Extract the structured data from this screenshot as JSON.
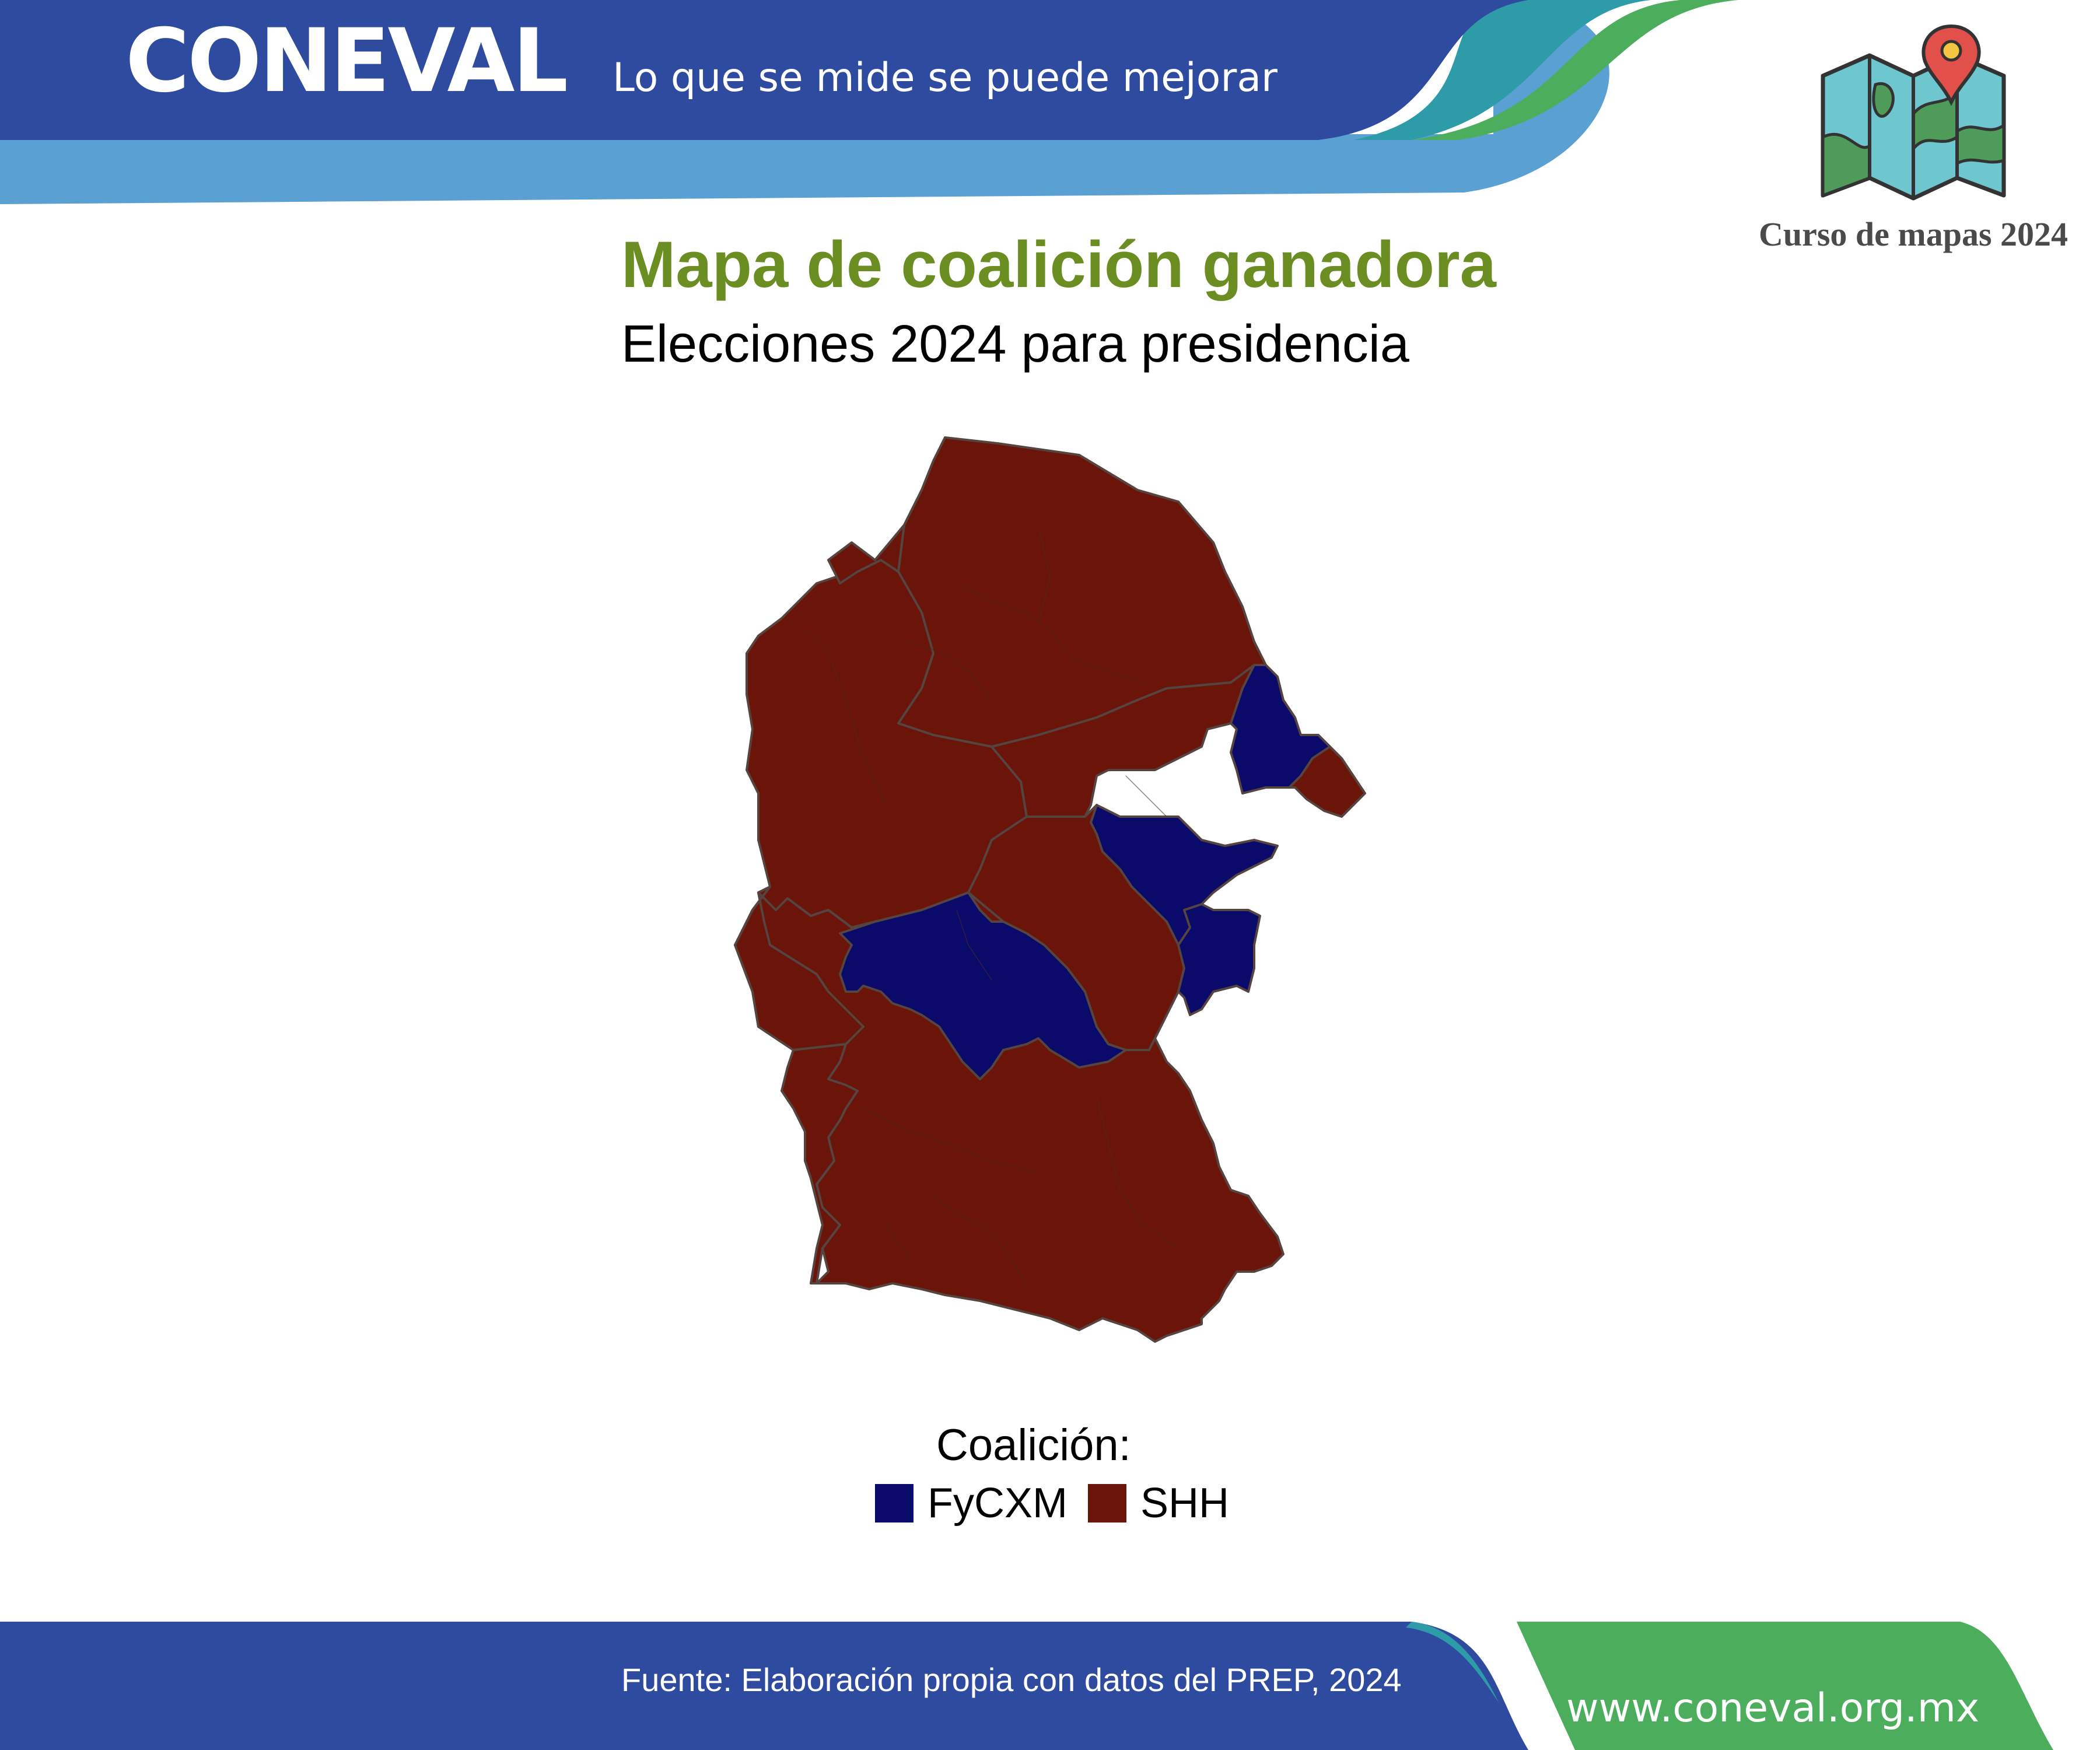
{
  "header": {
    "brand": "CONEVAL",
    "tagline": "Lo que se mide se puede mejorar",
    "course_label": "Curso de mapas 2024",
    "course_icon": "folded-map-with-pin-icon"
  },
  "map": {
    "title": "Mapa de coalición ganadora",
    "subtitle": "Elecciones 2024 para presidencia",
    "regions": [
      {
        "name": "west-north",
        "coalition": "SHH"
      },
      {
        "name": "north-center",
        "coalition": "SHH"
      },
      {
        "name": "east-border-a",
        "coalition": "SHH"
      },
      {
        "name": "east-border-b",
        "coalition": "SHH"
      },
      {
        "name": "northeast-tip",
        "coalition": "FyCXM"
      },
      {
        "name": "northeast-lobe",
        "coalition": "SHH"
      },
      {
        "name": "east-band",
        "coalition": "FyCXM"
      },
      {
        "name": "central-band",
        "coalition": "SHH"
      },
      {
        "name": "east-block",
        "coalition": "FyCXM"
      },
      {
        "name": "southwest",
        "coalition": "SHH"
      },
      {
        "name": "central-south",
        "coalition": "FyCXM"
      },
      {
        "name": "south",
        "coalition": "SHH"
      }
    ]
  },
  "legend": {
    "title": "Coalición:",
    "items": [
      {
        "label": "FyCXM",
        "color": "#0a0a6b"
      },
      {
        "label": "SHH",
        "color": "#6b1409"
      }
    ]
  },
  "footer": {
    "source": "Fuente: Elaboración propia con datos del PREP, 2024",
    "website": "www.coneval.org.mx"
  },
  "colors": {
    "FyCXM": "#0a0a6b",
    "SHH": "#6b1409",
    "header_blue": "#2f4b9f",
    "header_light_blue": "#5aa0d2",
    "accent_green": "#4cae5c",
    "title_green": "#6b8e23",
    "map_border": "#55443f"
  }
}
